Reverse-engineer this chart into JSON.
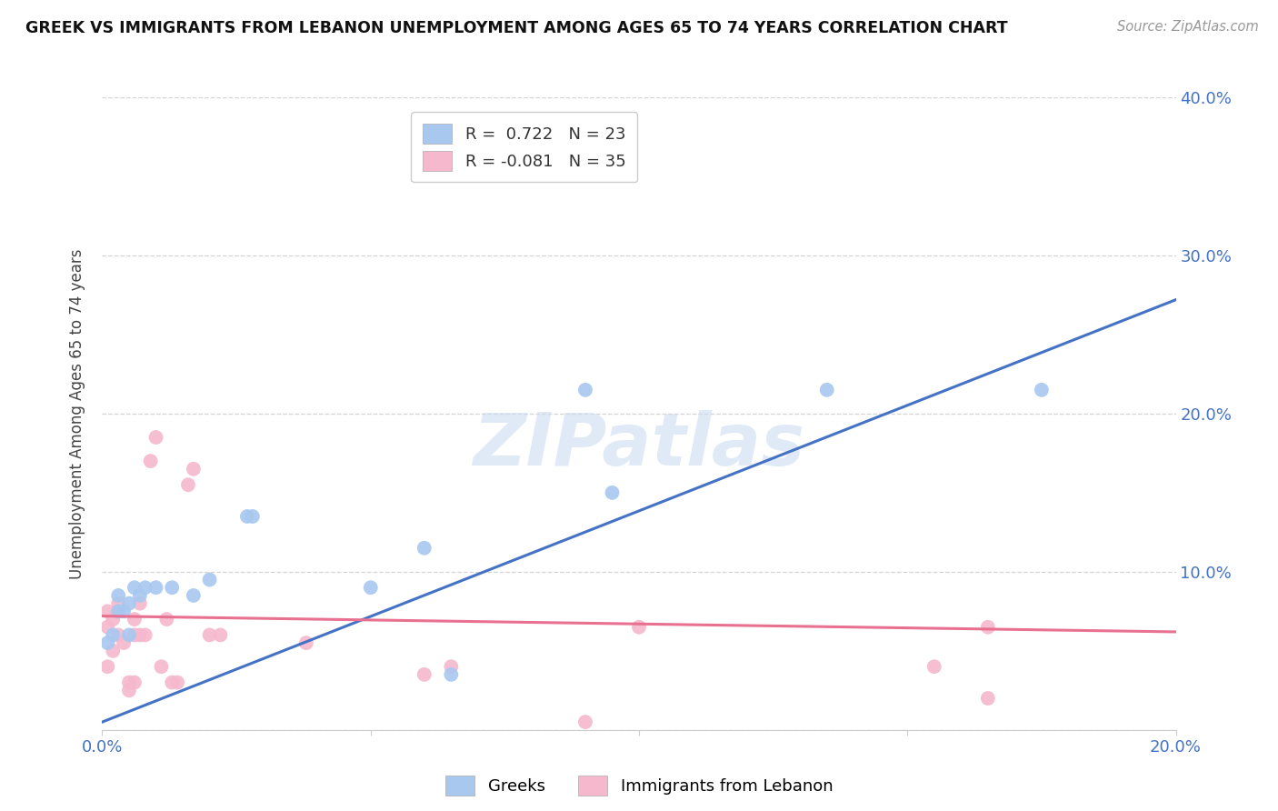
{
  "title": "GREEK VS IMMIGRANTS FROM LEBANON UNEMPLOYMENT AMONG AGES 65 TO 74 YEARS CORRELATION CHART",
  "source": "Source: ZipAtlas.com",
  "ylabel": "Unemployment Among Ages 65 to 74 years",
  "xlim": [
    0.0,
    0.2
  ],
  "ylim": [
    0.0,
    0.4
  ],
  "greek_color": "#a8c8f0",
  "lebanon_color": "#f5b8cc",
  "greek_line_color": "#4472c4",
  "lebanon_line_color": "#e87090",
  "legend_greek_R": "R =  0.722",
  "legend_greek_N": "N = 23",
  "legend_lebanon_R": "R = -0.081",
  "legend_lebanon_N": "N = 35",
  "legend_label_greek": "Greeks",
  "legend_label_lebanon": "Immigrants from Lebanon",
  "watermark": "ZIPatlas",
  "greek_x": [
    0.001,
    0.002,
    0.003,
    0.003,
    0.004,
    0.005,
    0.005,
    0.006,
    0.007,
    0.008,
    0.01,
    0.013,
    0.017,
    0.02,
    0.027,
    0.028,
    0.05,
    0.06,
    0.065,
    0.09,
    0.095,
    0.135,
    0.175
  ],
  "greek_y": [
    0.055,
    0.06,
    0.075,
    0.085,
    0.075,
    0.08,
    0.06,
    0.09,
    0.085,
    0.09,
    0.09,
    0.09,
    0.085,
    0.095,
    0.135,
    0.135,
    0.09,
    0.115,
    0.035,
    0.215,
    0.15,
    0.215,
    0.215
  ],
  "lebanon_x": [
    0.001,
    0.001,
    0.001,
    0.002,
    0.002,
    0.003,
    0.003,
    0.003,
    0.004,
    0.005,
    0.005,
    0.006,
    0.006,
    0.006,
    0.007,
    0.007,
    0.008,
    0.009,
    0.01,
    0.011,
    0.012,
    0.013,
    0.014,
    0.016,
    0.017,
    0.02,
    0.022,
    0.038,
    0.06,
    0.065,
    0.09,
    0.1,
    0.155,
    0.165,
    0.165
  ],
  "lebanon_y": [
    0.04,
    0.065,
    0.075,
    0.05,
    0.07,
    0.06,
    0.075,
    0.08,
    0.055,
    0.025,
    0.03,
    0.03,
    0.06,
    0.07,
    0.06,
    0.08,
    0.06,
    0.17,
    0.185,
    0.04,
    0.07,
    0.03,
    0.03,
    0.155,
    0.165,
    0.06,
    0.06,
    0.055,
    0.035,
    0.04,
    0.005,
    0.065,
    0.04,
    0.02,
    0.065
  ],
  "greek_line_x0": 0.0,
  "greek_line_y0": 0.005,
  "greek_line_x1": 0.2,
  "greek_line_y1": 0.272,
  "lebanon_line_x0": 0.0,
  "lebanon_line_y0": 0.072,
  "lebanon_line_x1": 0.2,
  "lebanon_line_y1": 0.062,
  "background_color": "#ffffff",
  "grid_color": "#d0d0d0"
}
